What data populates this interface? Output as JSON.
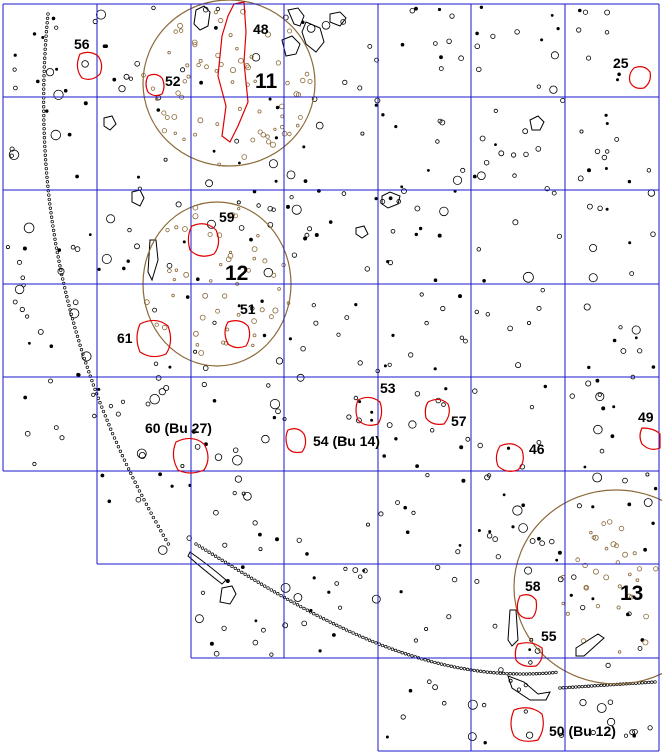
{
  "map": {
    "grid_color": "#1a1acc",
    "object_outline_color": "#e00000",
    "cluster_color": "#8b6a3a",
    "feature_color": "#000000",
    "objects": {
      "o56": "56",
      "o52": "52",
      "o48": "48",
      "o25": "25",
      "o59": "59",
      "o51": "51",
      "o61": "61",
      "o53": "53",
      "o57": "57",
      "o49": "49",
      "o60": "60 (Bu 27)",
      "o54": "54 (Bu 14)",
      "o46": "46",
      "o58": "58",
      "o55": "55",
      "o50": "50 (Bu 12)"
    },
    "clusters": {
      "c11": "11",
      "c12": "12",
      "c13": "13"
    }
  }
}
